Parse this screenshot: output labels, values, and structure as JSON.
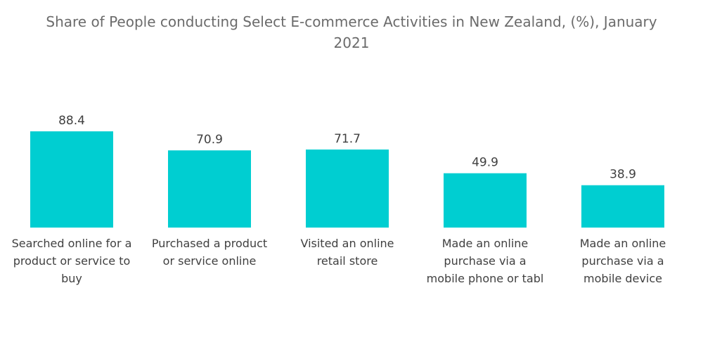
{
  "chart_data": {
    "type": "bar",
    "title": "Share of People conducting Select E-commerce Activities in New Zealand, (%), January 2021",
    "title_lines": [
      "Share of People conducting Select E-commerce Activities in New Zealand, (%), January",
      "2021"
    ],
    "categories": [
      [
        "Searched online for a",
        "product or service to",
        "buy"
      ],
      [
        "Purchased a product",
        "or service online"
      ],
      [
        "Visited an online",
        "retail store"
      ],
      [
        "Made an online",
        "purchase via a",
        "mobile phone or tabl"
      ],
      [
        "Made an online",
        "purchase via a",
        "mobile device"
      ]
    ],
    "values": [
      88.4,
      70.9,
      71.7,
      49.9,
      38.9
    ],
    "value_labels": [
      "88.4",
      "70.9",
      "71.7",
      "49.9",
      "38.9"
    ],
    "xlabel": "",
    "ylabel": "",
    "ylim": [
      0,
      100
    ],
    "grid": false,
    "colors": {
      "bar": "#00CED1",
      "text": "#404040",
      "title": "#6b6b6b"
    }
  }
}
